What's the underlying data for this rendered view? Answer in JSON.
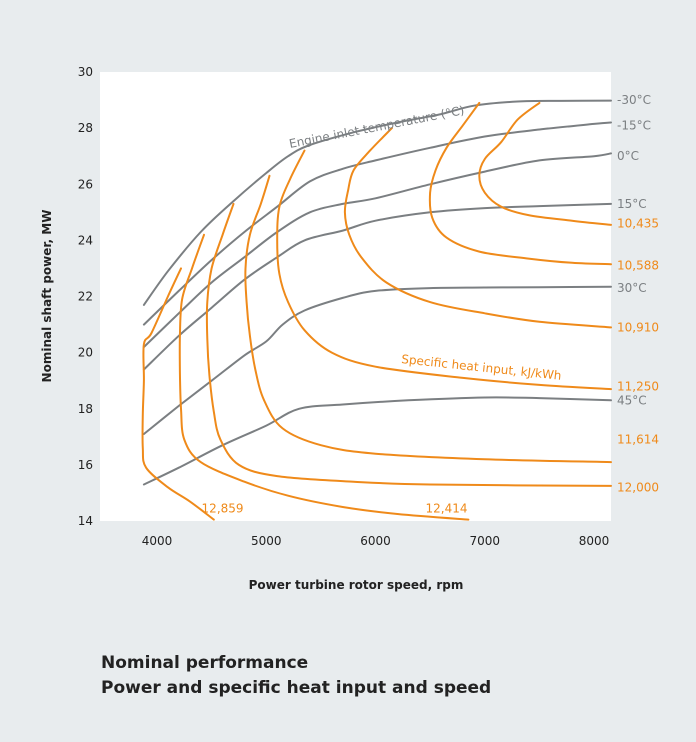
{
  "chart_data": {
    "type": "line",
    "xlabel": "Power turbine rotor speed, rpm",
    "ylabel": "Nominal shaft power, MW",
    "xlim": [
      3500,
      8100
    ],
    "ylim": [
      14,
      30
    ],
    "xticks": [
      4000,
      5000,
      6000,
      7000,
      8000
    ],
    "yticks": [
      14,
      16,
      18,
      20,
      22,
      24,
      26,
      28,
      30
    ],
    "grid": false,
    "legend": "none",
    "colors": {
      "temperature": "#7b7f82",
      "heat_input": "#ef8a1a",
      "background": "#e8ecee",
      "plot_background": "#ffffff"
    },
    "annotations": {
      "temperature_curves_label": "Engine inlet temperature (°C)",
      "heat_input_curves_label": "Specific heat input, kJ/kWh"
    },
    "temperature_series": [
      {
        "name": "-30°C",
        "points": [
          [
            3880,
            21.7
          ],
          [
            4100,
            22.9
          ],
          [
            4400,
            24.3
          ],
          [
            4700,
            25.4
          ],
          [
            5000,
            26.4
          ],
          [
            5200,
            27.0
          ],
          [
            5400,
            27.4
          ],
          [
            5800,
            27.85
          ],
          [
            6200,
            28.2
          ],
          [
            6600,
            28.5
          ],
          [
            6900,
            28.8
          ],
          [
            7300,
            28.95
          ],
          [
            7700,
            28.97
          ],
          [
            8200,
            28.98
          ]
        ]
      },
      {
        "name": "-15°C",
        "points": [
          [
            3880,
            21.0
          ],
          [
            4200,
            22.2
          ],
          [
            4500,
            23.3
          ],
          [
            4800,
            24.3
          ],
          [
            5100,
            25.2
          ],
          [
            5400,
            26.1
          ],
          [
            5700,
            26.55
          ],
          [
            6000,
            26.85
          ],
          [
            6500,
            27.3
          ],
          [
            7000,
            27.7
          ],
          [
            7500,
            27.95
          ],
          [
            8000,
            28.15
          ],
          [
            8200,
            28.2
          ]
        ]
      },
      {
        "name": "0°C",
        "points": [
          [
            3880,
            20.2
          ],
          [
            4200,
            21.4
          ],
          [
            4500,
            22.5
          ],
          [
            4800,
            23.4
          ],
          [
            5100,
            24.3
          ],
          [
            5400,
            25.0
          ],
          [
            5700,
            25.3
          ],
          [
            6000,
            25.5
          ],
          [
            6500,
            26.0
          ],
          [
            7000,
            26.45
          ],
          [
            7500,
            26.85
          ],
          [
            8000,
            27.0
          ],
          [
            8200,
            27.1
          ]
        ]
      },
      {
        "name": "15°C",
        "points": [
          [
            3880,
            19.4
          ],
          [
            4200,
            20.6
          ],
          [
            4500,
            21.6
          ],
          [
            4800,
            22.6
          ],
          [
            5100,
            23.4
          ],
          [
            5350,
            24.0
          ],
          [
            5700,
            24.35
          ],
          [
            6000,
            24.7
          ],
          [
            6500,
            25.0
          ],
          [
            7000,
            25.15
          ],
          [
            7500,
            25.22
          ],
          [
            8200,
            25.3
          ]
        ]
      },
      {
        "name": "30°C",
        "points": [
          [
            3880,
            17.1
          ],
          [
            4200,
            18.1
          ],
          [
            4500,
            19.0
          ],
          [
            4800,
            19.9
          ],
          [
            5000,
            20.4
          ],
          [
            5150,
            21.0
          ],
          [
            5350,
            21.5
          ],
          [
            5700,
            21.95
          ],
          [
            6000,
            22.2
          ],
          [
            6500,
            22.3
          ],
          [
            7000,
            22.32
          ],
          [
            7500,
            22.33
          ],
          [
            8200,
            22.35
          ]
        ]
      },
      {
        "name": "45°C",
        "points": [
          [
            3880,
            15.3
          ],
          [
            4200,
            15.9
          ],
          [
            4600,
            16.7
          ],
          [
            5000,
            17.4
          ],
          [
            5300,
            18.0
          ],
          [
            5700,
            18.15
          ],
          [
            6300,
            18.3
          ],
          [
            7000,
            18.4
          ],
          [
            7500,
            18.38
          ],
          [
            8200,
            18.3
          ]
        ]
      }
    ],
    "heat_input_series": [
      {
        "name": "10,435",
        "points": [
          [
            7500,
            28.9
          ],
          [
            7300,
            28.3
          ],
          [
            7150,
            27.5
          ],
          [
            7000,
            26.9
          ],
          [
            6950,
            26.3
          ],
          [
            7000,
            25.7
          ],
          [
            7150,
            25.2
          ],
          [
            7400,
            24.9
          ],
          [
            7800,
            24.7
          ],
          [
            8200,
            24.55
          ]
        ]
      },
      {
        "name": "10,588",
        "points": [
          [
            6950,
            28.9
          ],
          [
            6800,
            28.1
          ],
          [
            6650,
            27.3
          ],
          [
            6550,
            26.5
          ],
          [
            6500,
            25.7
          ],
          [
            6520,
            24.8
          ],
          [
            6650,
            24.1
          ],
          [
            6950,
            23.6
          ],
          [
            7400,
            23.35
          ],
          [
            7800,
            23.2
          ],
          [
            8200,
            23.15
          ]
        ]
      },
      {
        "name": "10,910",
        "points": [
          [
            6150,
            28.0
          ],
          [
            5950,
            27.2
          ],
          [
            5800,
            26.5
          ],
          [
            5750,
            25.8
          ],
          [
            5720,
            25.0
          ],
          [
            5760,
            24.2
          ],
          [
            5870,
            23.4
          ],
          [
            6100,
            22.5
          ],
          [
            6500,
            21.8
          ],
          [
            7000,
            21.4
          ],
          [
            7500,
            21.1
          ],
          [
            8200,
            20.9
          ]
        ]
      },
      {
        "name": "11,250",
        "points": [
          [
            5350,
            27.2
          ],
          [
            5220,
            26.2
          ],
          [
            5120,
            25.2
          ],
          [
            5100,
            24.0
          ],
          [
            5120,
            22.8
          ],
          [
            5200,
            21.8
          ],
          [
            5350,
            20.8
          ],
          [
            5600,
            20.0
          ],
          [
            6000,
            19.5
          ],
          [
            6800,
            19.1
          ],
          [
            7500,
            18.85
          ],
          [
            8200,
            18.7
          ]
        ]
      },
      {
        "name": "11,614",
        "points": [
          [
            5030,
            26.3
          ],
          [
            4950,
            25.3
          ],
          [
            4850,
            24.2
          ],
          [
            4810,
            23.0
          ],
          [
            4820,
            21.8
          ],
          [
            4850,
            20.6
          ],
          [
            4900,
            19.4
          ],
          [
            4980,
            18.3
          ],
          [
            5150,
            17.3
          ],
          [
            5500,
            16.7
          ],
          [
            6000,
            16.4
          ],
          [
            7000,
            16.2
          ],
          [
            8200,
            16.1
          ]
        ]
      },
      {
        "name": "12,000",
        "points": [
          [
            4700,
            25.3
          ],
          [
            4600,
            24.2
          ],
          [
            4500,
            23.0
          ],
          [
            4460,
            21.8
          ],
          [
            4460,
            20.5
          ],
          [
            4480,
            19.2
          ],
          [
            4520,
            17.9
          ],
          [
            4580,
            16.9
          ],
          [
            4750,
            16.0
          ],
          [
            5100,
            15.6
          ],
          [
            5800,
            15.4
          ],
          [
            6500,
            15.3
          ],
          [
            8200,
            15.25
          ]
        ]
      },
      {
        "name": "12,414",
        "points": [
          [
            4430,
            24.2
          ],
          [
            4320,
            23.0
          ],
          [
            4230,
            21.9
          ],
          [
            4210,
            20.6
          ],
          [
            4210,
            19.3
          ],
          [
            4220,
            18.0
          ],
          [
            4250,
            16.9
          ],
          [
            4400,
            16.1
          ],
          [
            4800,
            15.4
          ],
          [
            5200,
            14.9
          ],
          [
            5700,
            14.5
          ],
          [
            6200,
            14.25
          ],
          [
            6850,
            14.05
          ]
        ]
      },
      {
        "name": "12,859",
        "points": [
          [
            4220,
            23.0
          ],
          [
            4100,
            22.0
          ],
          [
            3950,
            20.7
          ],
          [
            3880,
            20.3
          ],
          [
            3880,
            19.0
          ],
          [
            3870,
            17.8
          ],
          [
            3870,
            16.6
          ],
          [
            3900,
            15.9
          ],
          [
            4100,
            15.2
          ],
          [
            4300,
            14.7
          ],
          [
            4520,
            14.05
          ]
        ]
      }
    ],
    "end_labels": [
      {
        "text": "-30°C",
        "kind": "temperature",
        "at": 29.0
      },
      {
        "text": "-15°C",
        "kind": "temperature",
        "at": 28.1
      },
      {
        "text": "0°C",
        "kind": "temperature",
        "at": 27.0
      },
      {
        "text": "15°C",
        "kind": "temperature",
        "at": 25.3
      },
      {
        "text": "10,435",
        "kind": "heat",
        "at": 24.6
      },
      {
        "text": "10,588",
        "kind": "heat",
        "at": 23.1
      },
      {
        "text": "30°C",
        "kind": "temperature",
        "at": 22.3
      },
      {
        "text": "10,910",
        "kind": "heat",
        "at": 20.9
      },
      {
        "text": "11,250",
        "kind": "heat",
        "at": 18.8
      },
      {
        "text": "45°C",
        "kind": "temperature",
        "at": 18.3
      },
      {
        "text": "11,614",
        "kind": "heat",
        "at": 16.9
      },
      {
        "text": "12,000",
        "kind": "heat",
        "at": 15.2
      }
    ],
    "bottom_labels": [
      {
        "text": "12,859",
        "x": 4600,
        "y": 14.3
      },
      {
        "text": "12,414",
        "x": 6650,
        "y": 14.3
      }
    ]
  },
  "caption": {
    "line1": "Nominal performance",
    "line2": "Power and specific heat input and speed"
  }
}
